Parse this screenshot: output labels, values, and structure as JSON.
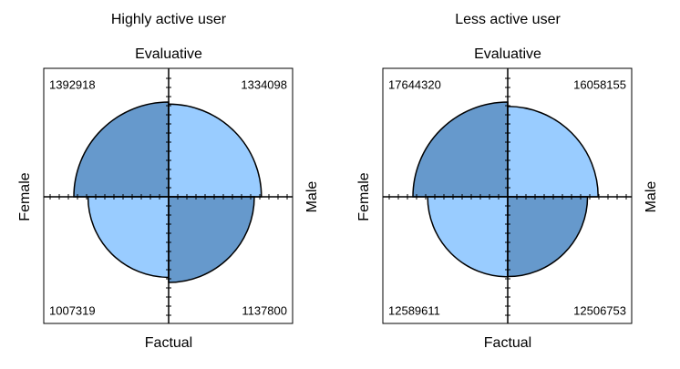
{
  "chart_data": [
    {
      "type": "fourfold",
      "title": "Highly active user",
      "top_label": "Evaluative",
      "bottom_label": "Factual",
      "left_label": "Female",
      "right_label": "Male",
      "values": [
        1392918,
        1334098,
        1007319,
        1137800
      ],
      "colors": [
        "#6699cc",
        "#99ccff",
        "#99ccff",
        "#6699cc"
      ]
    },
    {
      "type": "fourfold",
      "title": "Less active user",
      "top_label": "Evaluative",
      "bottom_label": "Factual",
      "left_label": "Female",
      "right_label": "Male",
      "values": [
        17644320,
        16058155,
        12589611,
        12506753
      ],
      "colors": [
        "#6699cc",
        "#99ccff",
        "#99ccff",
        "#6699cc"
      ]
    }
  ]
}
